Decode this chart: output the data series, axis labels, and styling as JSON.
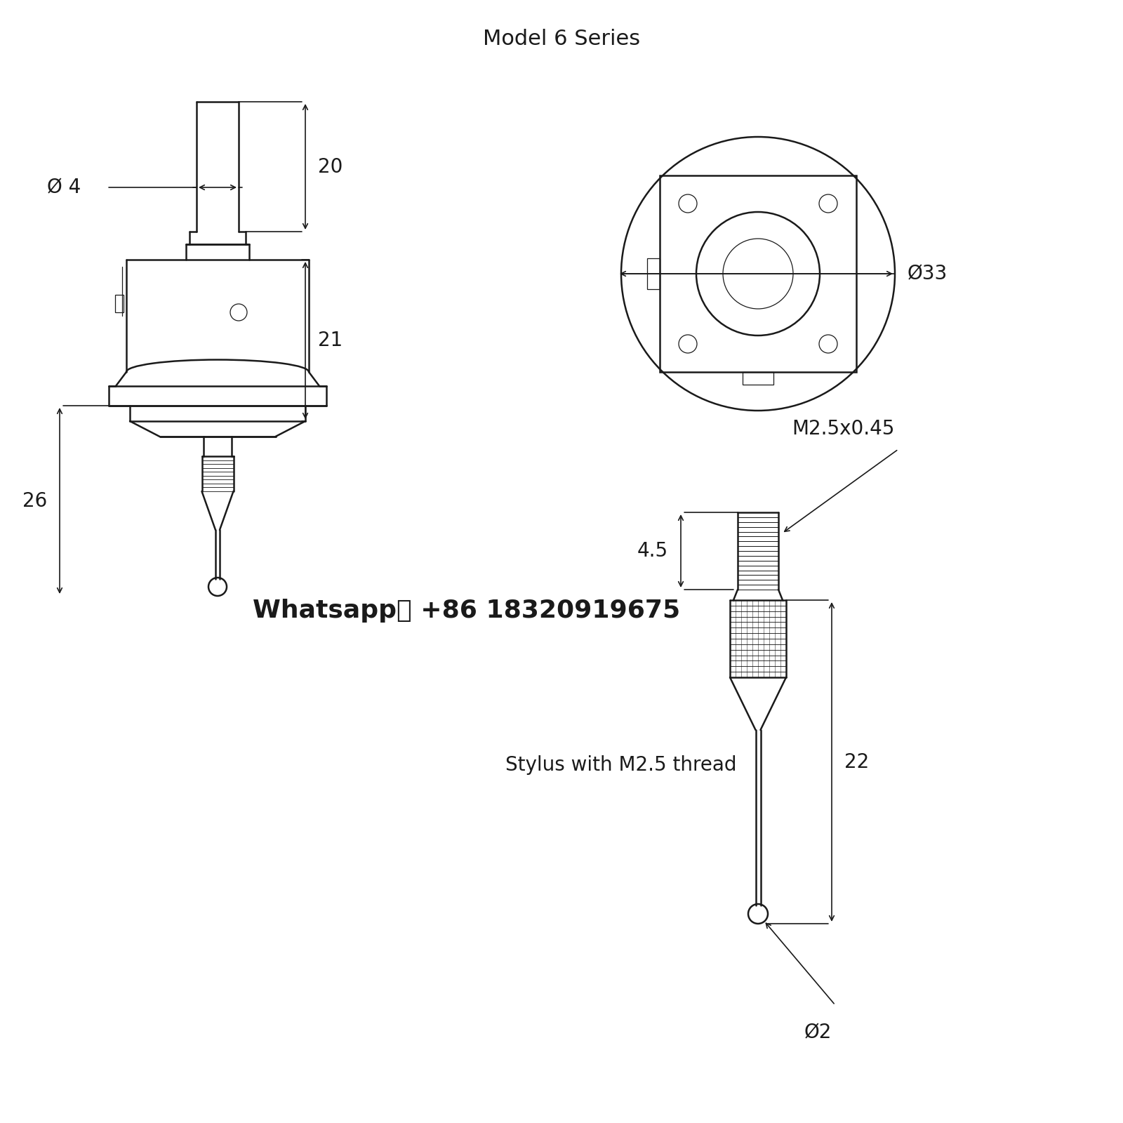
{
  "title": "Model 6 Series",
  "title_fontsize": 22,
  "bg_color": "#ffffff",
  "line_color": "#1a1a1a",
  "dim_color": "#1a1a1a",
  "whatsapp_text": "Whatsapp： +86 18320919675",
  "whatsapp_fontsize": 26,
  "dim_20": "20",
  "dim_21": "21",
  "dim_26": "26",
  "dim_4": "Ø 4",
  "dim_33": "Ø33",
  "dim_4_5": "4.5",
  "dim_22": "22",
  "dim_2": "Ø2",
  "dim_m25": "M2.5x0.45",
  "stylus_text": "Stylus with M2.5 thread"
}
